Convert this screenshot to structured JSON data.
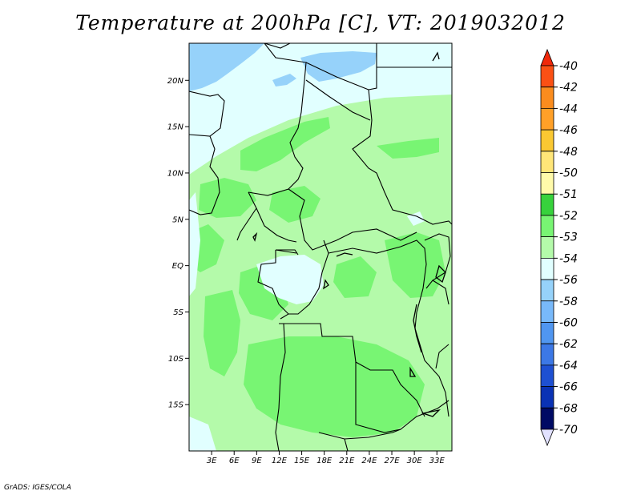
{
  "title": "Temperature at 200hPa [C], VT: 2019032012",
  "credit": "GrADS: IGES/COLA",
  "map": {
    "lon_range": [
      0,
      35
    ],
    "lat_range": [
      -20,
      24
    ],
    "lon_ticks": [
      "3E",
      "6E",
      "9E",
      "12E",
      "15E",
      "18E",
      "21E",
      "24E",
      "27E",
      "30E",
      "33E"
    ],
    "lon_tick_values": [
      3,
      6,
      9,
      12,
      15,
      18,
      21,
      24,
      27,
      30,
      33
    ],
    "lat_ticks": [
      "20N",
      "15N",
      "10N",
      "5N",
      "EQ",
      "5S",
      "10S",
      "15S"
    ],
    "lat_tick_values": [
      20,
      15,
      10,
      5,
      0,
      -5,
      -10,
      -15
    ],
    "field_colors": {
      "c_56": "#96d2fa",
      "c_54": "#e1ffff",
      "c_53": "#b4faaa",
      "c_52": "#78f573"
    }
  },
  "colorbar": {
    "labels": [
      "-40",
      "-42",
      "-44",
      "-46",
      "-48",
      "-50",
      "-51",
      "-52",
      "-53",
      "-54",
      "-56",
      "-58",
      "-60",
      "-62",
      "-64",
      "-66",
      "-68",
      "-70"
    ],
    "colors": [
      "#f0280a",
      "#fa5014",
      "#fa8c1e",
      "#ffa028",
      "#fac832",
      "#ffe678",
      "#fffaaa",
      "#37d23c",
      "#78f573",
      "#b4faaa",
      "#e1ffff",
      "#96d2fa",
      "#78b9fa",
      "#5096f0",
      "#3c78e6",
      "#1e50d2",
      "#0a32b4",
      "#000a64",
      "#e1e1ff"
    ]
  }
}
